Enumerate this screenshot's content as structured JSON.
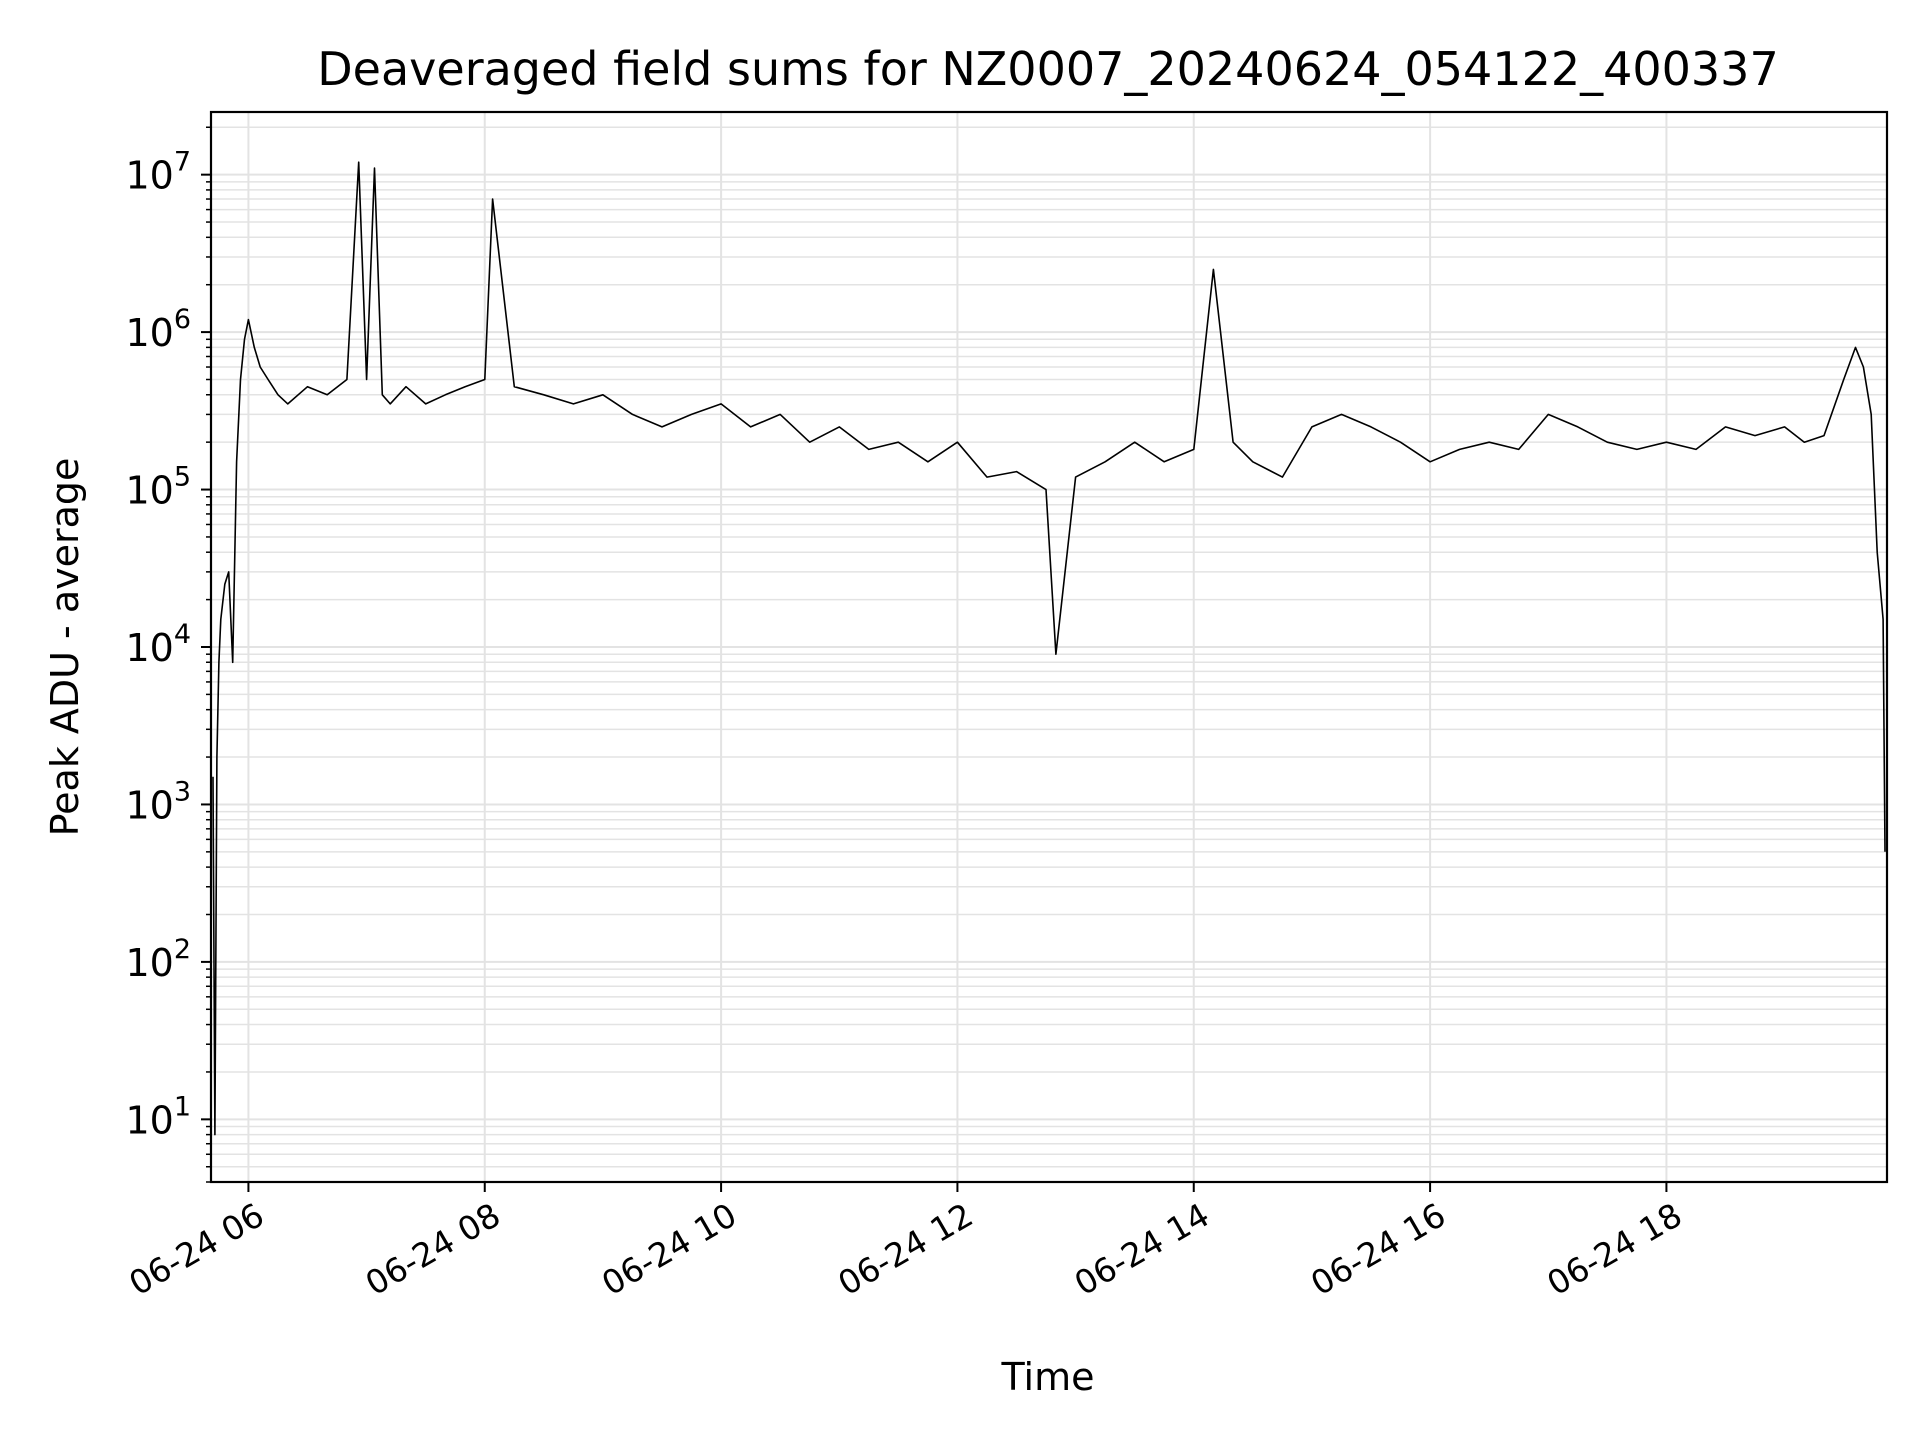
{
  "chart_data": {
    "type": "line",
    "title": "Deaveraged field sums for NZ0007_20240624_054122_400337",
    "xlabel": "Time",
    "ylabel": "Peak ADU - average",
    "y_scale": "log",
    "ylim": [
      4,
      25000000
    ],
    "xlim": [
      "2024-06-24 05:41",
      "2024-06-24 19:52"
    ],
    "x_ticks": [
      "06-24 06",
      "06-24 08",
      "06-24 10",
      "06-24 12",
      "06-24 14",
      "06-24 16",
      "06-24 18"
    ],
    "x_tick_times": [
      "2024-06-24 06:00",
      "2024-06-24 08:00",
      "2024-06-24 10:00",
      "2024-06-24 12:00",
      "2024-06-24 14:00",
      "2024-06-24 16:00",
      "2024-06-24 18:00"
    ],
    "y_ticks": [
      {
        "base": "10",
        "exp": "1",
        "value": 10
      },
      {
        "base": "10",
        "exp": "2",
        "value": 100
      },
      {
        "base": "10",
        "exp": "3",
        "value": 1000
      },
      {
        "base": "10",
        "exp": "4",
        "value": 10000
      },
      {
        "base": "10",
        "exp": "5",
        "value": 100000
      },
      {
        "base": "10",
        "exp": "6",
        "value": 1000000
      },
      {
        "base": "10",
        "exp": "7",
        "value": 10000000
      }
    ],
    "grid": true,
    "line_color": "#000000",
    "grid_color": "#e3e3e3",
    "series": [
      {
        "x": [
          "2024-06-24 05:42",
          "2024-06-24 05:43",
          "2024-06-24 05:44",
          "2024-06-24 05:45",
          "2024-06-24 05:46",
          "2024-06-24 05:48",
          "2024-06-24 05:50",
          "2024-06-24 05:52",
          "2024-06-24 05:54",
          "2024-06-24 05:56",
          "2024-06-24 05:58",
          "2024-06-24 06:00",
          "2024-06-24 06:03",
          "2024-06-24 06:06",
          "2024-06-24 06:10",
          "2024-06-24 06:15",
          "2024-06-24 06:20",
          "2024-06-24 06:30",
          "2024-06-24 06:40",
          "2024-06-24 06:50",
          "2024-06-24 06:56",
          "2024-06-24 07:00",
          "2024-06-24 07:04",
          "2024-06-24 07:08",
          "2024-06-24 07:12",
          "2024-06-24 07:20",
          "2024-06-24 07:30",
          "2024-06-24 07:40",
          "2024-06-24 07:50",
          "2024-06-24 08:00",
          "2024-06-24 08:04",
          "2024-06-24 08:15",
          "2024-06-24 08:30",
          "2024-06-24 08:45",
          "2024-06-24 09:00",
          "2024-06-24 09:15",
          "2024-06-24 09:30",
          "2024-06-24 09:45",
          "2024-06-24 10:00",
          "2024-06-24 10:15",
          "2024-06-24 10:30",
          "2024-06-24 10:45",
          "2024-06-24 11:00",
          "2024-06-24 11:15",
          "2024-06-24 11:30",
          "2024-06-24 11:45",
          "2024-06-24 12:00",
          "2024-06-24 12:15",
          "2024-06-24 12:30",
          "2024-06-24 12:45",
          "2024-06-24 12:50",
          "2024-06-24 13:00",
          "2024-06-24 13:15",
          "2024-06-24 13:30",
          "2024-06-24 13:45",
          "2024-06-24 14:00",
          "2024-06-24 14:10",
          "2024-06-24 14:20",
          "2024-06-24 14:30",
          "2024-06-24 14:45",
          "2024-06-24 15:00",
          "2024-06-24 15:15",
          "2024-06-24 15:30",
          "2024-06-24 15:45",
          "2024-06-24 16:00",
          "2024-06-24 16:15",
          "2024-06-24 16:30",
          "2024-06-24 16:45",
          "2024-06-24 17:00",
          "2024-06-24 17:15",
          "2024-06-24 17:30",
          "2024-06-24 17:45",
          "2024-06-24 18:00",
          "2024-06-24 18:15",
          "2024-06-24 18:30",
          "2024-06-24 18:45",
          "2024-06-24 19:00",
          "2024-06-24 19:10",
          "2024-06-24 19:20",
          "2024-06-24 19:30",
          "2024-06-24 19:36",
          "2024-06-24 19:40",
          "2024-06-24 19:44",
          "2024-06-24 19:47",
          "2024-06-24 19:50",
          "2024-06-24 19:51"
        ],
        "y": [
          1500,
          8,
          2000,
          8000,
          15000,
          25000,
          30000,
          8000,
          150000,
          500000,
          900000,
          1200000,
          800000,
          600000,
          500000,
          400000,
          350000,
          450000,
          400000,
          500000,
          12000000,
          500000,
          11000000,
          400000,
          350000,
          450000,
          350000,
          400000,
          450000,
          500000,
          7000000,
          450000,
          400000,
          350000,
          400000,
          300000,
          250000,
          300000,
          350000,
          250000,
          300000,
          200000,
          250000,
          180000,
          200000,
          150000,
          200000,
          120000,
          130000,
          100000,
          9000,
          120000,
          150000,
          200000,
          150000,
          180000,
          2500000,
          200000,
          150000,
          120000,
          250000,
          300000,
          250000,
          200000,
          150000,
          180000,
          200000,
          180000,
          300000,
          250000,
          200000,
          180000,
          200000,
          180000,
          250000,
          220000,
          250000,
          200000,
          220000,
          500000,
          800000,
          600000,
          300000,
          40000,
          15000,
          500
        ]
      }
    ]
  }
}
